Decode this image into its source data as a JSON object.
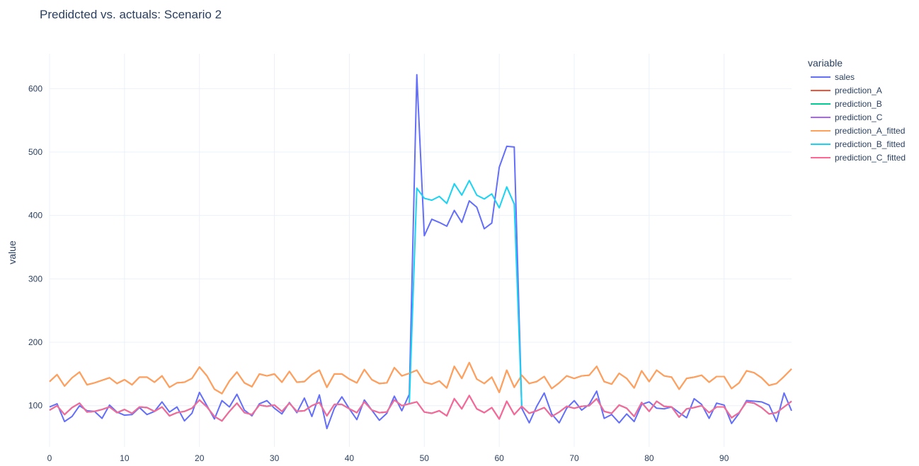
{
  "chart_data": {
    "type": "line",
    "title": "Predidcted vs. actuals: Scenario 2",
    "xlabel": "",
    "ylabel": "value",
    "xlim": [
      0,
      99
    ],
    "ylim": [
      35,
      655
    ],
    "x_ticks": [
      0,
      10,
      20,
      30,
      40,
      50,
      60,
      70,
      80,
      90
    ],
    "y_ticks": [
      100,
      200,
      300,
      400,
      500,
      600
    ],
    "grid": true,
    "legend_title": "variable",
    "legend_position": "right",
    "x": [
      0,
      1,
      2,
      3,
      4,
      5,
      6,
      7,
      8,
      9,
      10,
      11,
      12,
      13,
      14,
      15,
      16,
      17,
      18,
      19,
      20,
      21,
      22,
      23,
      24,
      25,
      26,
      27,
      28,
      29,
      30,
      31,
      32,
      33,
      34,
      35,
      36,
      37,
      38,
      39,
      40,
      41,
      42,
      43,
      44,
      45,
      46,
      47,
      48,
      49,
      50,
      51,
      52,
      53,
      54,
      55,
      56,
      57,
      58,
      59,
      60,
      61,
      62,
      63,
      64,
      65,
      66,
      67,
      68,
      69,
      70,
      71,
      72,
      73,
      74,
      75,
      76,
      77,
      78,
      79,
      80,
      81,
      82,
      83,
      84,
      85,
      86,
      87,
      88,
      89,
      90,
      91,
      92,
      93,
      94,
      95,
      96,
      97,
      98,
      99
    ],
    "series": [
      {
        "name": "sales",
        "color": "#636efa",
        "values": [
          98,
          103,
          75,
          83,
          100,
          92,
          91,
          80,
          101,
          90,
          85,
          86,
          97,
          86,
          91,
          106,
          90,
          98,
          76,
          88,
          121,
          100,
          79,
          108,
          98,
          118,
          93,
          84,
          103,
          108,
          96,
          87,
          105,
          89,
          112,
          83,
          117,
          64,
          96,
          114,
          95,
          78,
          109,
          93,
          77,
          88,
          115,
          92,
          118,
          622,
          368,
          394,
          389,
          383,
          408,
          389,
          423,
          413,
          379,
          388,
          476,
          509,
          508,
          96,
          73,
          99,
          120,
          87,
          73,
          96,
          108,
          93,
          102,
          123,
          80,
          86,
          73,
          87,
          75,
          102,
          106,
          96,
          95,
          98,
          89,
          81,
          111,
          102,
          80,
          104,
          101,
          72,
          88,
          108,
          107,
          106,
          101,
          75,
          120,
          92
        ]
      },
      {
        "name": "prediction_A",
        "color": "#ef553b",
        "values": [
          138,
          149,
          131,
          144,
          153,
          133,
          136,
          140,
          144,
          135,
          141,
          133,
          145,
          145,
          137,
          147,
          129,
          136,
          137,
          143,
          161,
          147,
          126,
          119,
          139,
          153,
          136,
          130,
          150,
          147,
          150,
          137,
          154,
          137,
          138,
          149,
          156,
          129,
          150,
          150,
          142,
          136,
          157,
          141,
          135,
          136,
          160,
          147,
          151,
          156,
          137,
          134,
          139,
          128,
          162,
          143,
          168,
          142,
          135,
          145,
          121,
          156,
          129,
          148,
          135,
          138,
          146,
          127,
          136,
          147,
          143,
          147,
          148,
          162,
          138,
          134,
          151,
          143,
          128,
          155,
          138,
          156,
          147,
          145,
          126,
          143,
          145,
          148,
          137,
          146,
          146,
          127,
          136,
          155,
          152,
          144,
          132,
          135,
          146,
          158
        ]
      },
      {
        "name": "prediction_B",
        "color": "#00cc96",
        "values": [
          93,
          100,
          86,
          97,
          104,
          90,
          91,
          94,
          98,
          89,
          94,
          88,
          98,
          97,
          91,
          98,
          84,
          89,
          91,
          96,
          109,
          98,
          83,
          76,
          91,
          104,
          89,
          86,
          101,
          99,
          101,
          91,
          104,
          91,
          92,
          100,
          105,
          84,
          102,
          102,
          95,
          89,
          106,
          93,
          89,
          90,
          109,
          100,
          103,
          106,
          90,
          88,
          92,
          84,
          111,
          95,
          116,
          95,
          89,
          97,
          79,
          107,
          86,
          99,
          88,
          92,
          97,
          83,
          90,
          99,
          96,
          99,
          100,
          111,
          91,
          88,
          101,
          96,
          83,
          105,
          91,
          107,
          99,
          98,
          82,
          95,
          97,
          100,
          89,
          98,
          98,
          81,
          89,
          106,
          104,
          97,
          87,
          89,
          98,
          107
        ]
      },
      {
        "name": "prediction_C",
        "color": "#ab63fa",
        "values": [
          93,
          100,
          86,
          97,
          104,
          90,
          91,
          94,
          98,
          89,
          94,
          88,
          98,
          97,
          91,
          98,
          84,
          89,
          91,
          96,
          109,
          98,
          83,
          76,
          91,
          104,
          89,
          86,
          101,
          99,
          101,
          91,
          104,
          91,
          92,
          100,
          105,
          84,
          102,
          102,
          95,
          89,
          106,
          93,
          89,
          90,
          109,
          100,
          103,
          106,
          90,
          88,
          92,
          84,
          111,
          95,
          116,
          95,
          89,
          97,
          79,
          107,
          86,
          99,
          88,
          92,
          97,
          83,
          90,
          99,
          96,
          99,
          100,
          111,
          91,
          88,
          101,
          96,
          83,
          105,
          91,
          107,
          99,
          98,
          82,
          95,
          97,
          100,
          89,
          98,
          98,
          81,
          89,
          106,
          104,
          97,
          87,
          89,
          98,
          107
        ]
      },
      {
        "name": "prediction_A_fitted",
        "color": "#ffa15a",
        "values": [
          138,
          149,
          131,
          144,
          153,
          133,
          136,
          140,
          144,
          135,
          141,
          133,
          145,
          145,
          137,
          147,
          129,
          136,
          137,
          143,
          161,
          147,
          126,
          119,
          139,
          153,
          136,
          130,
          150,
          147,
          150,
          137,
          154,
          137,
          138,
          149,
          156,
          129,
          150,
          150,
          142,
          136,
          157,
          141,
          135,
          136,
          160,
          147,
          151,
          156,
          137,
          134,
          139,
          128,
          162,
          143,
          168,
          142,
          135,
          145,
          121,
          156,
          129,
          148,
          135,
          138,
          146,
          127,
          136,
          147,
          143,
          147,
          148,
          162,
          138,
          134,
          151,
          143,
          128,
          155,
          138,
          156,
          147,
          145,
          126,
          143,
          145,
          148,
          137,
          146,
          146,
          127,
          136,
          155,
          152,
          144,
          132,
          135,
          146,
          158
        ]
      },
      {
        "name": "prediction_B_fitted",
        "color": "#19d3f3",
        "values": [
          93,
          100,
          86,
          97,
          104,
          90,
          91,
          94,
          98,
          89,
          94,
          88,
          98,
          97,
          91,
          98,
          84,
          89,
          91,
          96,
          109,
          98,
          83,
          76,
          91,
          104,
          89,
          86,
          101,
          99,
          101,
          91,
          104,
          91,
          92,
          100,
          105,
          84,
          102,
          102,
          95,
          89,
          106,
          93,
          89,
          90,
          109,
          100,
          103,
          443,
          427,
          424,
          430,
          419,
          450,
          432,
          455,
          432,
          426,
          434,
          412,
          445,
          418,
          99,
          88,
          92,
          97,
          83,
          90,
          99,
          96,
          99,
          100,
          111,
          91,
          88,
          101,
          96,
          83,
          105,
          91,
          107,
          99,
          98,
          82,
          95,
          97,
          100,
          89,
          98,
          98,
          81,
          89,
          106,
          104,
          97,
          87,
          89,
          98,
          107
        ]
      },
      {
        "name": "prediction_C_fitted",
        "color": "#ff6692",
        "values": [
          93,
          100,
          86,
          97,
          104,
          90,
          91,
          94,
          98,
          89,
          94,
          88,
          98,
          97,
          91,
          98,
          84,
          89,
          91,
          96,
          109,
          98,
          83,
          76,
          91,
          104,
          89,
          86,
          101,
          99,
          101,
          91,
          104,
          91,
          92,
          100,
          105,
          84,
          102,
          102,
          95,
          89,
          106,
          93,
          89,
          90,
          109,
          100,
          103,
          106,
          90,
          88,
          92,
          84,
          111,
          95,
          116,
          95,
          89,
          97,
          79,
          107,
          86,
          99,
          88,
          92,
          97,
          83,
          90,
          99,
          96,
          99,
          100,
          111,
          91,
          88,
          101,
          96,
          83,
          105,
          91,
          107,
          99,
          98,
          82,
          95,
          97,
          100,
          89,
          98,
          98,
          81,
          89,
          106,
          104,
          97,
          87,
          89,
          98,
          107
        ]
      }
    ]
  }
}
